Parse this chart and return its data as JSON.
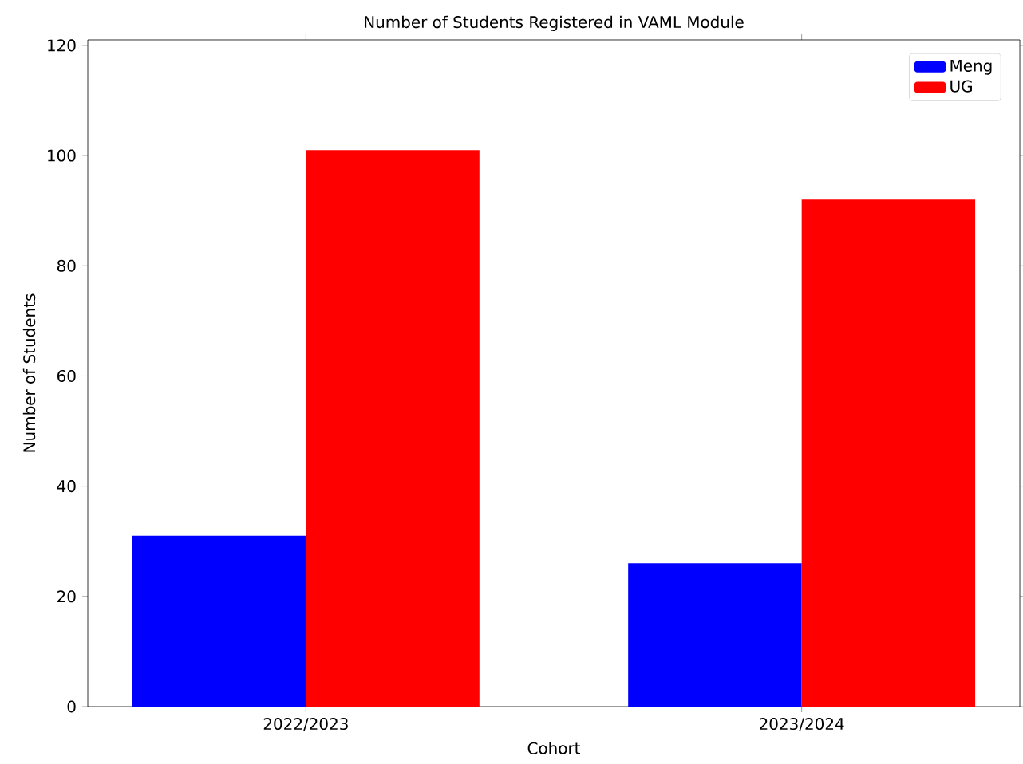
{
  "chart_data": {
    "type": "bar",
    "title": "Number of Students Registered in VAML Module",
    "xlabel": "Cohort",
    "ylabel": "Number of Students",
    "categories": [
      "2022/2023",
      "2023/2024"
    ],
    "series": [
      {
        "name": "Meng",
        "color": "#0000ff",
        "values": [
          31,
          26
        ]
      },
      {
        "name": "UG",
        "color": "#ff0000",
        "values": [
          101,
          92
        ]
      }
    ],
    "ylim": [
      0,
      121
    ],
    "yticks": [
      0,
      20,
      40,
      60,
      80,
      100,
      120
    ],
    "legend": "top right"
  }
}
